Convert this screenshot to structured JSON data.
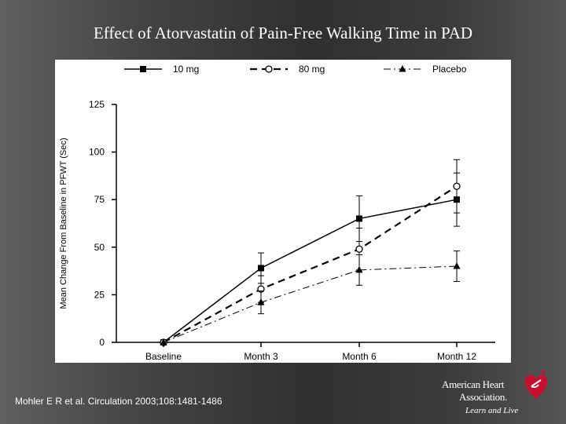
{
  "slide": {
    "title": "Effect of Atorvastatin of Pain-Free Walking Time in PAD",
    "citation": "Mohler E R et al. Circulation 2003;108:1481-1486"
  },
  "logo": {
    "line1": "American Heart",
    "line2": "Association.",
    "tagline": "Learn and Live",
    "icon": "heart-torch-icon",
    "color": "#c8102e"
  },
  "chart_data": {
    "type": "line",
    "categories": [
      "Baseline",
      "Month 3",
      "Month 6",
      "Month 12"
    ],
    "ylabel": "Mean Change From Baseline in PFWT (Sec)",
    "ylim": [
      0,
      125
    ],
    "yticks": [
      0,
      25,
      50,
      75,
      100,
      125
    ],
    "grid": false,
    "legend_position": "top",
    "series": [
      {
        "name": "10 mg",
        "values": [
          0,
          39,
          65,
          75
        ],
        "error": [
          0,
          8,
          12,
          14
        ],
        "marker": "square",
        "line": "solid"
      },
      {
        "name": "80 mg",
        "values": [
          0,
          28,
          49,
          82
        ],
        "error": [
          0,
          7,
          11,
          14
        ],
        "marker": "circle",
        "line": "dashed"
      },
      {
        "name": "Placebo",
        "values": [
          0,
          21,
          38,
          40
        ],
        "error": [
          0,
          6,
          8,
          8
        ],
        "marker": "triangle",
        "line": "dashdot"
      }
    ]
  }
}
